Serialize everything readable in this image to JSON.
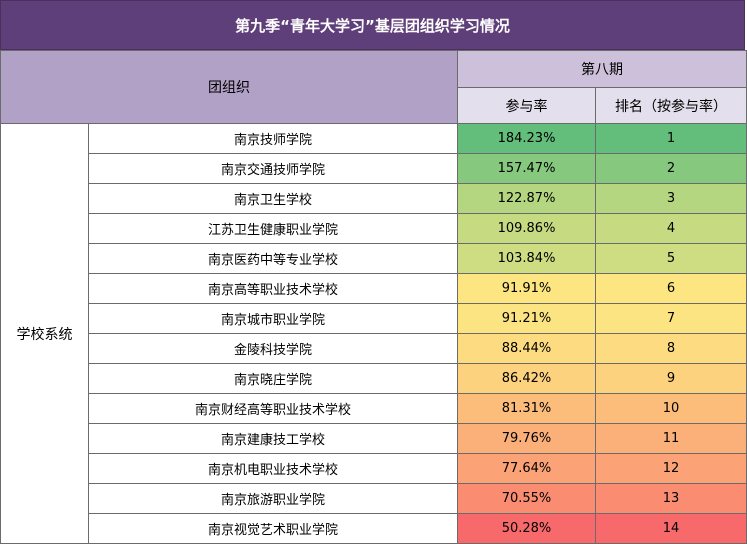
{
  "title": "第九季“青年大学习”基层团组织学习情况",
  "headers": {
    "org": "团组织",
    "period": "第八期",
    "rate": "参与率",
    "rank": "排名（按参与率）"
  },
  "group": "学校系统",
  "rows": [
    {
      "org": "南京技师学院",
      "rate": "184.23%",
      "rank": "1",
      "color": "#63be7b"
    },
    {
      "org": "南京交通技师学院",
      "rate": "157.47%",
      "rank": "2",
      "color": "#86c97e"
    },
    {
      "org": "南京卫生学校",
      "rate": "122.87%",
      "rank": "3",
      "color": "#b5d680"
    },
    {
      "org": "江苏卫生健康职业学院",
      "rate": "109.86%",
      "rank": "4",
      "color": "#c6db81"
    },
    {
      "org": "南京医药中等专业学校",
      "rate": "103.84%",
      "rank": "5",
      "color": "#cedd82"
    },
    {
      "org": "南京高等职业技术学校",
      "rate": "91.91%",
      "rank": "6",
      "color": "#fde682"
    },
    {
      "org": "南京城市职业学院",
      "rate": "91.21%",
      "rank": "7",
      "color": "#fde482"
    },
    {
      "org": "金陵科技学院",
      "rate": "88.44%",
      "rank": "8",
      "color": "#fddb80"
    },
    {
      "org": "南京晓庄学院",
      "rate": "86.42%",
      "rank": "9",
      "color": "#fcd27f"
    },
    {
      "org": "南京财经高等职业技术学校",
      "rate": "81.31%",
      "rank": "10",
      "color": "#fcbd7b"
    },
    {
      "org": "南京建康技工学校",
      "rate": "79.76%",
      "rank": "11",
      "color": "#fbb079"
    },
    {
      "org": "南京机电职业技术学校",
      "rate": "77.64%",
      "rank": "12",
      "color": "#fba377"
    },
    {
      "org": "南京旅游职业学院",
      "rate": "70.55%",
      "rank": "13",
      "color": "#fa8c72"
    },
    {
      "org": "南京视觉艺术职业学院",
      "rate": "50.28%",
      "rank": "14",
      "color": "#f8696b"
    }
  ]
}
